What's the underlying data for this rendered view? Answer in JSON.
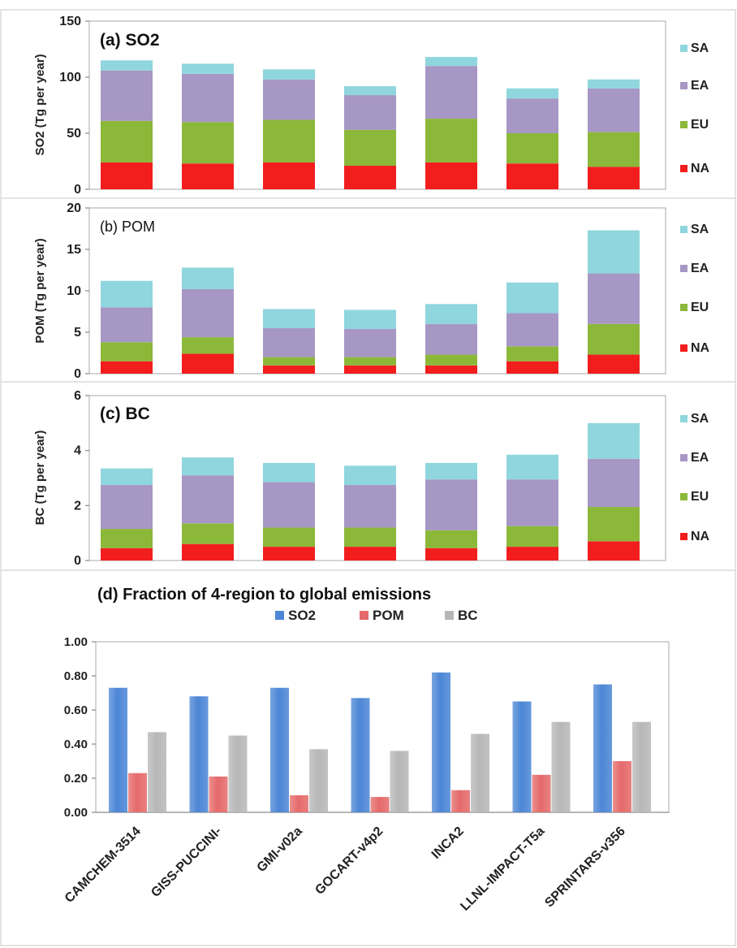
{
  "colors": {
    "NA": "#f21e1e",
    "EU": "#8cb83a",
    "EA": "#a797c4",
    "SA": "#8fd6de",
    "SO2": "#4c86d6",
    "POM": "#e56a6a",
    "BC": "#b7b7b7"
  },
  "chart_data": [
    {
      "type": "bar",
      "stacked": true,
      "title": "(a) SO2",
      "ylabel": "SO2 (Tg per year)",
      "ylim": [
        0,
        150
      ],
      "yticks": [
        "0",
        "50",
        "100",
        "150"
      ],
      "legend": [
        "SA",
        "EA",
        "EU",
        "NA"
      ],
      "series": [
        {
          "name": "NA",
          "values": [
            24,
            23,
            24,
            21,
            24,
            23,
            20
          ]
        },
        {
          "name": "EU",
          "values": [
            37,
            37,
            38,
            32,
            39,
            27,
            31
          ]
        },
        {
          "name": "EA",
          "values": [
            45,
            43,
            36,
            31,
            47,
            31,
            39
          ]
        },
        {
          "name": "SA",
          "values": [
            9,
            9,
            9,
            8,
            8,
            9,
            8
          ]
        }
      ]
    },
    {
      "type": "bar",
      "stacked": true,
      "title": "(b) POM",
      "ylabel": "POM (Tg per year)",
      "ylim": [
        0,
        20
      ],
      "yticks": [
        "0",
        "5",
        "10",
        "15",
        "20"
      ],
      "legend": [
        "SA",
        "EA",
        "EU",
        "NA"
      ],
      "series": [
        {
          "name": "NA",
          "values": [
            1.5,
            2.4,
            1.0,
            1.0,
            1.0,
            1.5,
            2.3
          ]
        },
        {
          "name": "EU",
          "values": [
            2.3,
            2.0,
            1.0,
            1.0,
            1.3,
            1.8,
            3.7
          ]
        },
        {
          "name": "EA",
          "values": [
            4.2,
            5.8,
            3.5,
            3.4,
            3.7,
            4.0,
            6.1
          ]
        },
        {
          "name": "SA",
          "values": [
            3.2,
            2.6,
            2.3,
            2.3,
            2.4,
            3.7,
            5.2
          ]
        }
      ]
    },
    {
      "type": "bar",
      "stacked": true,
      "title": "(c) BC",
      "ylabel": "BC (Tg per year)",
      "ylim": [
        0,
        6
      ],
      "yticks": [
        "0",
        "2",
        "4",
        "6"
      ],
      "legend": [
        "SA",
        "EA",
        "EU",
        "NA"
      ],
      "series": [
        {
          "name": "NA",
          "values": [
            0.45,
            0.6,
            0.5,
            0.5,
            0.45,
            0.5,
            0.7
          ]
        },
        {
          "name": "EU",
          "values": [
            0.7,
            0.75,
            0.7,
            0.7,
            0.65,
            0.75,
            1.25
          ]
        },
        {
          "name": "EA",
          "values": [
            1.6,
            1.75,
            1.65,
            1.55,
            1.85,
            1.7,
            1.75
          ]
        },
        {
          "name": "SA",
          "values": [
            0.6,
            0.65,
            0.7,
            0.7,
            0.6,
            0.9,
            1.3
          ]
        }
      ]
    },
    {
      "type": "bar",
      "stacked": false,
      "title": "(d) Fraction of 4-region to global emissions",
      "ylim": [
        0,
        1
      ],
      "yticks": [
        "0.00",
        "0.20",
        "0.40",
        "0.60",
        "0.80",
        "1.00"
      ],
      "categories": [
        "CAMCHEM-3514",
        "GISS-PUCCINI-",
        "GMI-v02a",
        "GOCART-v4p2",
        "INCA2",
        "LLNL-IMPACT-T5a",
        "SPRINTARS-v356"
      ],
      "series": [
        {
          "name": "SO2",
          "values": [
            0.73,
            0.68,
            0.73,
            0.67,
            0.82,
            0.65,
            0.75
          ]
        },
        {
          "name": "POM",
          "values": [
            0.23,
            0.21,
            0.1,
            0.09,
            0.13,
            0.22,
            0.3
          ]
        },
        {
          "name": "BC",
          "values": [
            0.47,
            0.45,
            0.37,
            0.36,
            0.46,
            0.53,
            0.53
          ]
        }
      ]
    }
  ]
}
